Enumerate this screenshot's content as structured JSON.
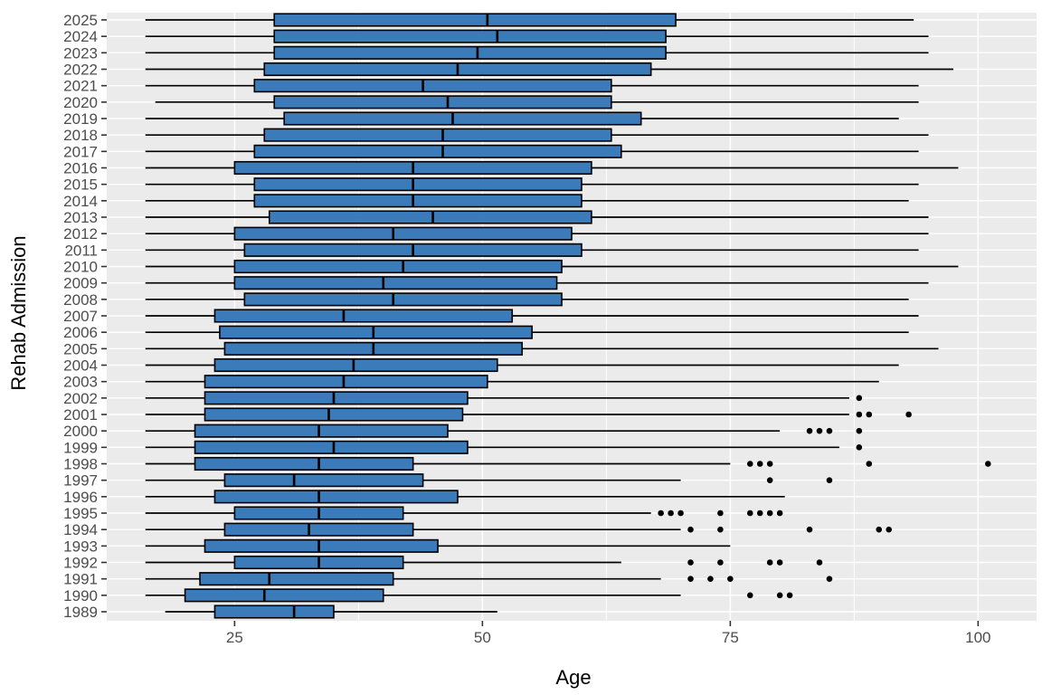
{
  "colors": {
    "panel_background": "#EBEBEB",
    "gridline": "#FFFFFF",
    "box_fill": "#3B7BB9",
    "box_stroke": "#000000",
    "median_line": "#000000",
    "whisker": "#000000",
    "outlier": "#000000",
    "tick_mark": "#333333",
    "tick_label": "#4D4D4D",
    "axis_title": "#000000"
  },
  "chart_data": {
    "type": "boxplot",
    "orientation": "horizontal",
    "title": "",
    "xlabel": "Age",
    "ylabel": "Rehab Admission",
    "xlim": [
      12.1,
      105.9
    ],
    "x_ticks": [
      25,
      50,
      75,
      100
    ],
    "x_tick_labels": [
      "25",
      "50",
      "75",
      "100"
    ],
    "x_minor_ticks": [
      37.5,
      62.5,
      87.5
    ],
    "grid": true,
    "legend": "none",
    "categories": [
      "2025",
      "2024",
      "2023",
      "2022",
      "2021",
      "2020",
      "2019",
      "2018",
      "2017",
      "2016",
      "2015",
      "2014",
      "2013",
      "2012",
      "2011",
      "2010",
      "2009",
      "2008",
      "2007",
      "2006",
      "2005",
      "2004",
      "2003",
      "2002",
      "2001",
      "2000",
      "1999",
      "1998",
      "1997",
      "1996",
      "1995",
      "1994",
      "1993",
      "1992",
      "1991",
      "1990",
      "1989"
    ],
    "series": [
      {
        "year": "2025",
        "whisker_min": 16,
        "q1": 29,
        "median": 50.5,
        "q3": 69.5,
        "whisker_max": 93.5,
        "outliers": []
      },
      {
        "year": "2024",
        "whisker_min": 16,
        "q1": 29,
        "median": 51.5,
        "q3": 68.5,
        "whisker_max": 95,
        "outliers": []
      },
      {
        "year": "2023",
        "whisker_min": 16,
        "q1": 29,
        "median": 49.5,
        "q3": 68.5,
        "whisker_max": 95,
        "outliers": []
      },
      {
        "year": "2022",
        "whisker_min": 16,
        "q1": 28,
        "median": 47.5,
        "q3": 67,
        "whisker_max": 97.5,
        "outliers": []
      },
      {
        "year": "2021",
        "whisker_min": 16,
        "q1": 27,
        "median": 44,
        "q3": 63,
        "whisker_max": 94,
        "outliers": []
      },
      {
        "year": "2020",
        "whisker_min": 17,
        "q1": 29,
        "median": 46.5,
        "q3": 63,
        "whisker_max": 94,
        "outliers": []
      },
      {
        "year": "2019",
        "whisker_min": 16,
        "q1": 30,
        "median": 47,
        "q3": 66,
        "whisker_max": 92,
        "outliers": []
      },
      {
        "year": "2018",
        "whisker_min": 16,
        "q1": 28,
        "median": 46,
        "q3": 63,
        "whisker_max": 95,
        "outliers": []
      },
      {
        "year": "2017",
        "whisker_min": 16,
        "q1": 27,
        "median": 46,
        "q3": 64,
        "whisker_max": 94,
        "outliers": []
      },
      {
        "year": "2016",
        "whisker_min": 16,
        "q1": 25,
        "median": 43,
        "q3": 61,
        "whisker_max": 98,
        "outliers": []
      },
      {
        "year": "2015",
        "whisker_min": 16,
        "q1": 27,
        "median": 43,
        "q3": 60,
        "whisker_max": 94,
        "outliers": []
      },
      {
        "year": "2014",
        "whisker_min": 16,
        "q1": 27,
        "median": 43,
        "q3": 60,
        "whisker_max": 93,
        "outliers": []
      },
      {
        "year": "2013",
        "whisker_min": 16,
        "q1": 28.5,
        "median": 45,
        "q3": 61,
        "whisker_max": 95,
        "outliers": []
      },
      {
        "year": "2012",
        "whisker_min": 16,
        "q1": 25,
        "median": 41,
        "q3": 59,
        "whisker_max": 95,
        "outliers": []
      },
      {
        "year": "2011",
        "whisker_min": 16,
        "q1": 26,
        "median": 43,
        "q3": 60,
        "whisker_max": 94,
        "outliers": []
      },
      {
        "year": "2010",
        "whisker_min": 16,
        "q1": 25,
        "median": 42,
        "q3": 58,
        "whisker_max": 98,
        "outliers": []
      },
      {
        "year": "2009",
        "whisker_min": 16,
        "q1": 25,
        "median": 40,
        "q3": 57.5,
        "whisker_max": 95,
        "outliers": []
      },
      {
        "year": "2008",
        "whisker_min": 16,
        "q1": 26,
        "median": 41,
        "q3": 58,
        "whisker_max": 93,
        "outliers": []
      },
      {
        "year": "2007",
        "whisker_min": 16,
        "q1": 23,
        "median": 36,
        "q3": 53,
        "whisker_max": 94,
        "outliers": []
      },
      {
        "year": "2006",
        "whisker_min": 16,
        "q1": 23.5,
        "median": 39,
        "q3": 55,
        "whisker_max": 93,
        "outliers": []
      },
      {
        "year": "2005",
        "whisker_min": 16,
        "q1": 24,
        "median": 39,
        "q3": 54,
        "whisker_max": 96,
        "outliers": []
      },
      {
        "year": "2004",
        "whisker_min": 16,
        "q1": 23,
        "median": 37,
        "q3": 51.5,
        "whisker_max": 92,
        "outliers": []
      },
      {
        "year": "2003",
        "whisker_min": 16,
        "q1": 22,
        "median": 36,
        "q3": 50.5,
        "whisker_max": 90,
        "outliers": []
      },
      {
        "year": "2002",
        "whisker_min": 16,
        "q1": 22,
        "median": 35,
        "q3": 48.5,
        "whisker_max": 87,
        "outliers": [
          88
        ]
      },
      {
        "year": "2001",
        "whisker_min": 16,
        "q1": 22,
        "median": 34.5,
        "q3": 48,
        "whisker_max": 87,
        "outliers": [
          88,
          89,
          93
        ]
      },
      {
        "year": "2000",
        "whisker_min": 16,
        "q1": 21,
        "median": 33.5,
        "q3": 46.5,
        "whisker_max": 80,
        "outliers": [
          83,
          84,
          85,
          88
        ]
      },
      {
        "year": "1999",
        "whisker_min": 16,
        "q1": 21,
        "median": 35,
        "q3": 48.5,
        "whisker_max": 86,
        "outliers": [
          88
        ]
      },
      {
        "year": "1998",
        "whisker_min": 16,
        "q1": 21,
        "median": 33.5,
        "q3": 43,
        "whisker_max": 75,
        "outliers": [
          77,
          78,
          79,
          89,
          101
        ]
      },
      {
        "year": "1997",
        "whisker_min": 16,
        "q1": 24,
        "median": 31,
        "q3": 44,
        "whisker_max": 70,
        "outliers": [
          79,
          85
        ]
      },
      {
        "year": "1996",
        "whisker_min": 16,
        "q1": 23,
        "median": 33.5,
        "q3": 47.5,
        "whisker_max": 80.5,
        "outliers": []
      },
      {
        "year": "1995",
        "whisker_min": 16,
        "q1": 25,
        "median": 33.5,
        "q3": 42,
        "whisker_max": 67,
        "outliers": [
          68,
          69,
          70,
          74,
          77,
          78,
          79,
          80
        ]
      },
      {
        "year": "1994",
        "whisker_min": 16,
        "q1": 24,
        "median": 32.5,
        "q3": 43,
        "whisker_max": 70,
        "outliers": [
          71,
          74,
          83,
          90,
          91
        ]
      },
      {
        "year": "1993",
        "whisker_min": 16,
        "q1": 22,
        "median": 33.5,
        "q3": 45.5,
        "whisker_max": 75,
        "outliers": []
      },
      {
        "year": "1992",
        "whisker_min": 16,
        "q1": 25,
        "median": 33.5,
        "q3": 42,
        "whisker_max": 64,
        "outliers": [
          71,
          74,
          79,
          80,
          84
        ]
      },
      {
        "year": "1991",
        "whisker_min": 16,
        "q1": 21.5,
        "median": 28.5,
        "q3": 41,
        "whisker_max": 68,
        "outliers": [
          71,
          73,
          75,
          85
        ]
      },
      {
        "year": "1990",
        "whisker_min": 16,
        "q1": 20,
        "median": 28,
        "q3": 40,
        "whisker_max": 70,
        "outliers": [
          77,
          80,
          81
        ]
      },
      {
        "year": "1989",
        "whisker_min": 18,
        "q1": 23,
        "median": 31,
        "q3": 35,
        "whisker_max": 51.5,
        "outliers": []
      }
    ]
  }
}
